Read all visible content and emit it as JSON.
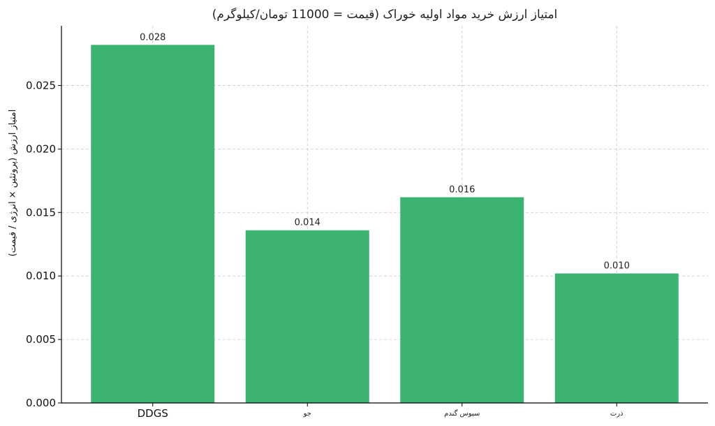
{
  "chart_data": {
    "type": "bar",
    "title": "امتیاز ارزش خرید مواد اولیه خوراک (قیمت = 11000 تومان/کیلوگرم)",
    "xlabel": "",
    "ylabel": "امتیاز ارزش (پروتئین × انرژی / قیمت)",
    "categories": [
      "DDGS",
      "جو",
      "سبوس گندم",
      "ذرت"
    ],
    "values": [
      0.0282,
      0.0136,
      0.0162,
      0.0102
    ],
    "data_labels": [
      "0.028",
      "0.014",
      "0.016",
      "0.010"
    ],
    "ylim": [
      0,
      0.0297
    ],
    "yticks": [
      0.0,
      0.005,
      0.01,
      0.015,
      0.02,
      0.025
    ],
    "ytick_labels": [
      "0.000",
      "0.005",
      "0.010",
      "0.015",
      "0.020",
      "0.025"
    ],
    "grid": true,
    "bar_color": "#3cb371"
  }
}
